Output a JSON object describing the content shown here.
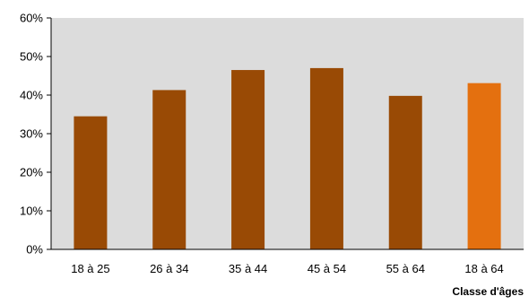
{
  "chart_data": {
    "type": "bar",
    "categories": [
      "18 à 25",
      "26 à 34",
      "35 à 44",
      "45 à 54",
      "55 à 64",
      "18 à 64"
    ],
    "values": [
      34.5,
      41.3,
      46.5,
      47.0,
      39.8,
      43.1
    ],
    "xlabel": "Classe d'âges",
    "ylabel": "",
    "ylim": [
      0,
      60
    ],
    "yticks": [
      0,
      10,
      20,
      30,
      40,
      50,
      60
    ],
    "ytick_labels": [
      "0%",
      "10%",
      "20%",
      "30%",
      "40%",
      "50%",
      "60%"
    ],
    "grid": false,
    "legend": "none",
    "colors": {
      "bar": "#994a05",
      "highlight_bar": "#e4700f",
      "plot_background": "#dcdcdc"
    },
    "highlight_index": 5
  }
}
